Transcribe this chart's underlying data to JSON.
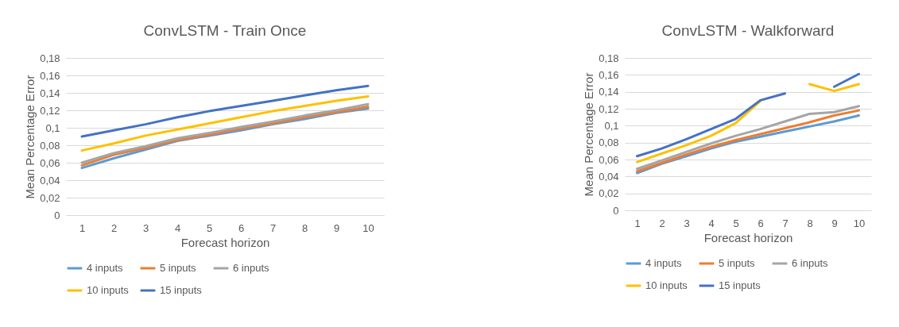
{
  "chart_data": [
    {
      "type": "line",
      "title": "ConvLSTM - Train Once",
      "xlabel": "Forecast horizon",
      "ylabel": "Mean Percentage Error",
      "categories": [
        "1",
        "2",
        "3",
        "4",
        "5",
        "6",
        "7",
        "8",
        "9",
        "10"
      ],
      "ylim": [
        0,
        0.18
      ],
      "yticks": [
        0,
        {
          "value": 0.02,
          "label": "0,02"
        },
        {
          "value": 0.04,
          "label": "0,04"
        },
        {
          "value": 0.06,
          "label": "0,06"
        },
        {
          "value": 0.08,
          "label": "0,08"
        },
        {
          "value": 0.1,
          "label": "0,1"
        },
        {
          "value": 0.12,
          "label": "0,12"
        },
        {
          "value": 0.14,
          "label": "0,14"
        },
        {
          "value": 0.16,
          "label": "0,16"
        },
        {
          "value": 0.18,
          "label": "0,18"
        }
      ],
      "grid": "y",
      "legend": "bottom",
      "series": [
        {
          "name": "4 inputs",
          "color": "#5b9bd5",
          "values": [
            0.054,
            0.065,
            0.075,
            0.085,
            0.091,
            0.097,
            0.104,
            0.11,
            0.117,
            0.122
          ]
        },
        {
          "name": "5 inputs",
          "color": "#ed7d31",
          "values": [
            0.057,
            0.069,
            0.077,
            0.086,
            0.092,
            0.099,
            0.105,
            0.112,
            0.118,
            0.124
          ]
        },
        {
          "name": "6 inputs",
          "color": "#a5a5a5",
          "values": [
            0.06,
            0.071,
            0.079,
            0.088,
            0.094,
            0.101,
            0.107,
            0.114,
            0.12,
            0.127
          ]
        },
        {
          "name": "10 inputs",
          "color": "#ffc000",
          "values": [
            0.074,
            0.082,
            0.091,
            0.098,
            0.105,
            0.112,
            0.119,
            0.125,
            0.131,
            0.136
          ]
        },
        {
          "name": "15 inputs",
          "color": "#4472c4",
          "values": [
            0.09,
            0.097,
            0.104,
            0.112,
            0.119,
            0.125,
            0.131,
            0.137,
            0.143,
            0.148
          ]
        }
      ]
    },
    {
      "type": "line",
      "title": "ConvLSTM - Walkforward",
      "xlabel": "Forecast horizon",
      "ylabel": "Mean Percentage Error",
      "categories": [
        "1",
        "2",
        "3",
        "4",
        "5",
        "6",
        "7",
        "8",
        "9",
        "10"
      ],
      "ylim": [
        0,
        0.18
      ],
      "yticks": [
        0,
        {
          "value": 0.02,
          "label": "0,02"
        },
        {
          "value": 0.04,
          "label": "0,04"
        },
        {
          "value": 0.06,
          "label": "0,06"
        },
        {
          "value": 0.08,
          "label": "0,08"
        },
        {
          "value": 0.1,
          "label": "0,1"
        },
        {
          "value": 0.12,
          "label": "0,12"
        },
        {
          "value": 0.14,
          "label": "0,14"
        },
        {
          "value": 0.16,
          "label": "0,16"
        },
        {
          "value": 0.18,
          "label": "0,18"
        }
      ],
      "grid": "y",
      "legend": "bottom",
      "series": [
        {
          "name": "4 inputs",
          "color": "#5b9bd5",
          "values": [
            0.044,
            0.055,
            0.064,
            0.073,
            0.081,
            0.087,
            0.093,
            0.099,
            0.105,
            0.112
          ]
        },
        {
          "name": "5 inputs",
          "color": "#ed7d31",
          "values": [
            0.046,
            0.056,
            0.066,
            0.075,
            0.083,
            0.09,
            0.097,
            0.104,
            0.112,
            0.118
          ]
        },
        {
          "name": "6 inputs",
          "color": "#a5a5a5",
          "values": [
            0.049,
            0.059,
            0.069,
            0.079,
            0.088,
            0.096,
            0.105,
            0.114,
            0.116,
            0.123
          ]
        },
        {
          "name": "10 inputs",
          "color": "#ffc000",
          "values": [
            0.057,
            0.067,
            0.077,
            0.088,
            0.103,
            0.129,
            null,
            0.149,
            0.141,
            0.149
          ]
        },
        {
          "name": "15 inputs",
          "color": "#4472c4",
          "values": [
            0.064,
            0.073,
            0.084,
            0.096,
            0.108,
            0.13,
            0.138,
            null,
            0.146,
            0.161
          ]
        }
      ]
    }
  ]
}
